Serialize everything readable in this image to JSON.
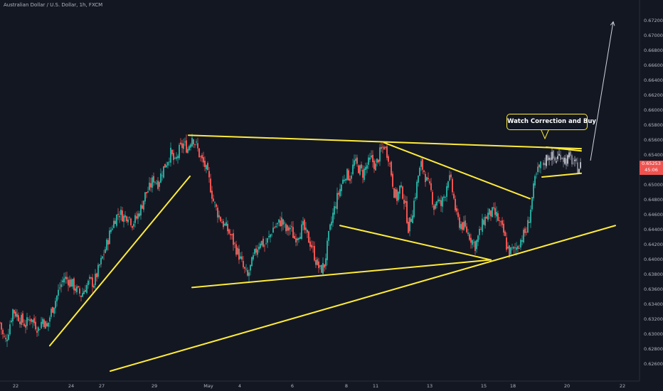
{
  "header": {
    "title": "Australian Dollar / U.S. Dollar, 1h, FXCM"
  },
  "callout": {
    "text": "Watch Correction and Buy"
  },
  "price_tag": {
    "price": "0.65253",
    "countdown": "45:06"
  },
  "colors": {
    "background": "#131722",
    "up": "#26a69a",
    "down": "#ef5350",
    "trendline": "#ffeb3b",
    "arrow": "#d1d4dc",
    "grey_candles": "#8f939c"
  },
  "chart_data": {
    "type": "candlestick",
    "title": "Australian Dollar / U.S. Dollar, 1h, FXCM",
    "ylim": [
      0.625,
      0.673
    ],
    "yticks": [
      "0.67200",
      "0.67000",
      "0.66800",
      "0.66600",
      "0.66400",
      "0.66200",
      "0.66000",
      "0.65800",
      "0.65600",
      "0.65400",
      "0.65200",
      "0.65000",
      "0.64800",
      "0.64600",
      "0.64400",
      "0.64200",
      "0.64000",
      "0.63800",
      "0.63600",
      "0.63400",
      "0.63200",
      "0.63000",
      "0.62800",
      "0.62600"
    ],
    "xticks": [
      "22",
      "24",
      "27",
      "29",
      "May",
      "4",
      "6",
      "8",
      "11",
      "13",
      "15",
      "18",
      "20",
      "22"
    ],
    "close_path": [
      [
        0,
        0.6315
      ],
      [
        4,
        0.6298
      ],
      [
        8,
        0.629
      ],
      [
        12,
        0.6305
      ],
      [
        18,
        0.6332
      ],
      [
        24,
        0.6325
      ],
      [
        30,
        0.6318
      ],
      [
        36,
        0.6312
      ],
      [
        42,
        0.6322
      ],
      [
        48,
        0.6315
      ],
      [
        54,
        0.6306
      ],
      [
        60,
        0.632
      ],
      [
        66,
        0.6308
      ],
      [
        72,
        0.633
      ],
      [
        78,
        0.6345
      ],
      [
        84,
        0.6362
      ],
      [
        90,
        0.6375
      ],
      [
        96,
        0.6372
      ],
      [
        102,
        0.6366
      ],
      [
        108,
        0.6358
      ],
      [
        114,
        0.6352
      ],
      [
        120,
        0.6362
      ],
      [
        126,
        0.637
      ],
      [
        132,
        0.6368
      ],
      [
        138,
        0.6385
      ],
      [
        144,
        0.6402
      ],
      [
        150,
        0.642
      ],
      [
        156,
        0.644
      ],
      [
        162,
        0.6455
      ],
      [
        168,
        0.6463
      ],
      [
        174,
        0.6456
      ],
      [
        180,
        0.646
      ],
      [
        186,
        0.6448
      ],
      [
        192,
        0.6455
      ],
      [
        198,
        0.6468
      ],
      [
        204,
        0.6486
      ],
      [
        210,
        0.6495
      ],
      [
        216,
        0.6508
      ],
      [
        222,
        0.6502
      ],
      [
        228,
        0.6518
      ],
      [
        234,
        0.653
      ],
      [
        240,
        0.6542
      ],
      [
        246,
        0.6528
      ],
      [
        252,
        0.6546
      ],
      [
        258,
        0.6554
      ],
      [
        264,
        0.6548
      ],
      [
        270,
        0.6565
      ],
      [
        276,
        0.6552
      ],
      [
        282,
        0.6535
      ],
      [
        288,
        0.6525
      ],
      [
        294,
        0.6505
      ],
      [
        300,
        0.6478
      ],
      [
        306,
        0.6462
      ],
      [
        312,
        0.645
      ],
      [
        318,
        0.6442
      ],
      [
        324,
        0.6432
      ],
      [
        330,
        0.6418
      ],
      [
        336,
        0.6405
      ],
      [
        342,
        0.6388
      ],
      [
        348,
        0.6376
      ],
      [
        354,
        0.6395
      ],
      [
        360,
        0.6412
      ],
      [
        366,
        0.6425
      ],
      [
        372,
        0.6418
      ],
      [
        378,
        0.6428
      ],
      [
        384,
        0.6442
      ],
      [
        390,
        0.6446
      ],
      [
        396,
        0.6452
      ],
      [
        402,
        0.6438
      ],
      [
        408,
        0.6442
      ],
      [
        414,
        0.6428
      ],
      [
        420,
        0.6435
      ],
      [
        426,
        0.6443
      ],
      [
        432,
        0.643
      ],
      [
        438,
        0.6418
      ],
      [
        444,
        0.6398
      ],
      [
        450,
        0.6385
      ],
      [
        456,
        0.6392
      ],
      [
        462,
        0.643
      ],
      [
        468,
        0.646
      ],
      [
        474,
        0.6482
      ],
      [
        480,
        0.65
      ],
      [
        486,
        0.6515
      ],
      [
        492,
        0.651
      ],
      [
        498,
        0.653
      ],
      [
        504,
        0.6522
      ],
      [
        510,
        0.6515
      ],
      [
        516,
        0.6526
      ],
      [
        522,
        0.6534
      ],
      [
        528,
        0.6524
      ],
      [
        534,
        0.6542
      ],
      [
        540,
        0.6552
      ],
      [
        546,
        0.6538
      ],
      [
        550,
        0.6515
      ],
      [
        554,
        0.649
      ],
      [
        558,
        0.6482
      ],
      [
        562,
        0.6495
      ],
      [
        566,
        0.6488
      ],
      [
        570,
        0.647
      ],
      [
        574,
        0.6442
      ],
      [
        578,
        0.6455
      ],
      [
        584,
        0.6488
      ],
      [
        588,
        0.6512
      ],
      [
        592,
        0.6526
      ],
      [
        596,
        0.6518
      ],
      [
        600,
        0.6504
      ],
      [
        606,
        0.649
      ],
      [
        610,
        0.647
      ],
      [
        614,
        0.648
      ],
      [
        620,
        0.6472
      ],
      [
        626,
        0.649
      ],
      [
        630,
        0.651
      ],
      [
        634,
        0.6502
      ],
      [
        638,
        0.648
      ],
      [
        642,
        0.6456
      ],
      [
        646,
        0.6448
      ],
      [
        650,
        0.6445
      ],
      [
        656,
        0.6438
      ],
      [
        662,
        0.6428
      ],
      [
        668,
        0.6418
      ],
      [
        674,
        0.6435
      ],
      [
        680,
        0.6452
      ],
      [
        686,
        0.646
      ],
      [
        692,
        0.6462
      ],
      [
        698,
        0.6458
      ],
      [
        702,
        0.6448
      ],
      [
        708,
        0.6435
      ],
      [
        712,
        0.6418
      ],
      [
        716,
        0.641
      ],
      [
        722,
        0.6412
      ],
      [
        728,
        0.6418
      ],
      [
        734,
        0.643
      ],
      [
        740,
        0.6438
      ],
      [
        744,
        0.6455
      ],
      [
        748,
        0.6482
      ],
      [
        752,
        0.6505
      ],
      [
        756,
        0.6518
      ],
      [
        760,
        0.6525
      ]
    ],
    "consolidation_path": [
      [
        764,
        0.6528
      ],
      [
        768,
        0.6535
      ],
      [
        772,
        0.654
      ],
      [
        776,
        0.6537
      ],
      [
        780,
        0.6532
      ],
      [
        784,
        0.6536
      ],
      [
        788,
        0.6541
      ],
      [
        792,
        0.6535
      ],
      [
        796,
        0.6532
      ],
      [
        800,
        0.6536
      ],
      [
        804,
        0.6532
      ],
      [
        808,
        0.6526
      ],
      [
        812,
        0.6522
      ],
      [
        816,
        0.6525
      ]
    ],
    "trendlines": [
      {
        "x1": 265,
        "y1": 0.6566,
        "x2": 817,
        "y2": 0.6548
      },
      {
        "x1": 540,
        "y1": 0.6556,
        "x2": 745,
        "y2": 0.6481
      },
      {
        "x1": 270,
        "y1": 0.6362,
        "x2": 690,
        "y2": 0.6399
      },
      {
        "x1": 478,
        "y1": 0.6445,
        "x2": 690,
        "y2": 0.6399
      },
      {
        "x1": 70,
        "y1": 0.6284,
        "x2": 267,
        "y2": 0.6511
      },
      {
        "x1": 155,
        "y1": 0.625,
        "x2": 865,
        "y2": 0.6445
      },
      {
        "x1": 768,
        "y1": 0.655,
        "x2": 817,
        "y2": 0.6545
      },
      {
        "x1": 762,
        "y1": 0.651,
        "x2": 817,
        "y2": 0.6515
      }
    ],
    "projection_arrow": {
      "x1": 830,
      "y1": 0.6532,
      "x2": 862,
      "y2": 0.6718
    }
  }
}
